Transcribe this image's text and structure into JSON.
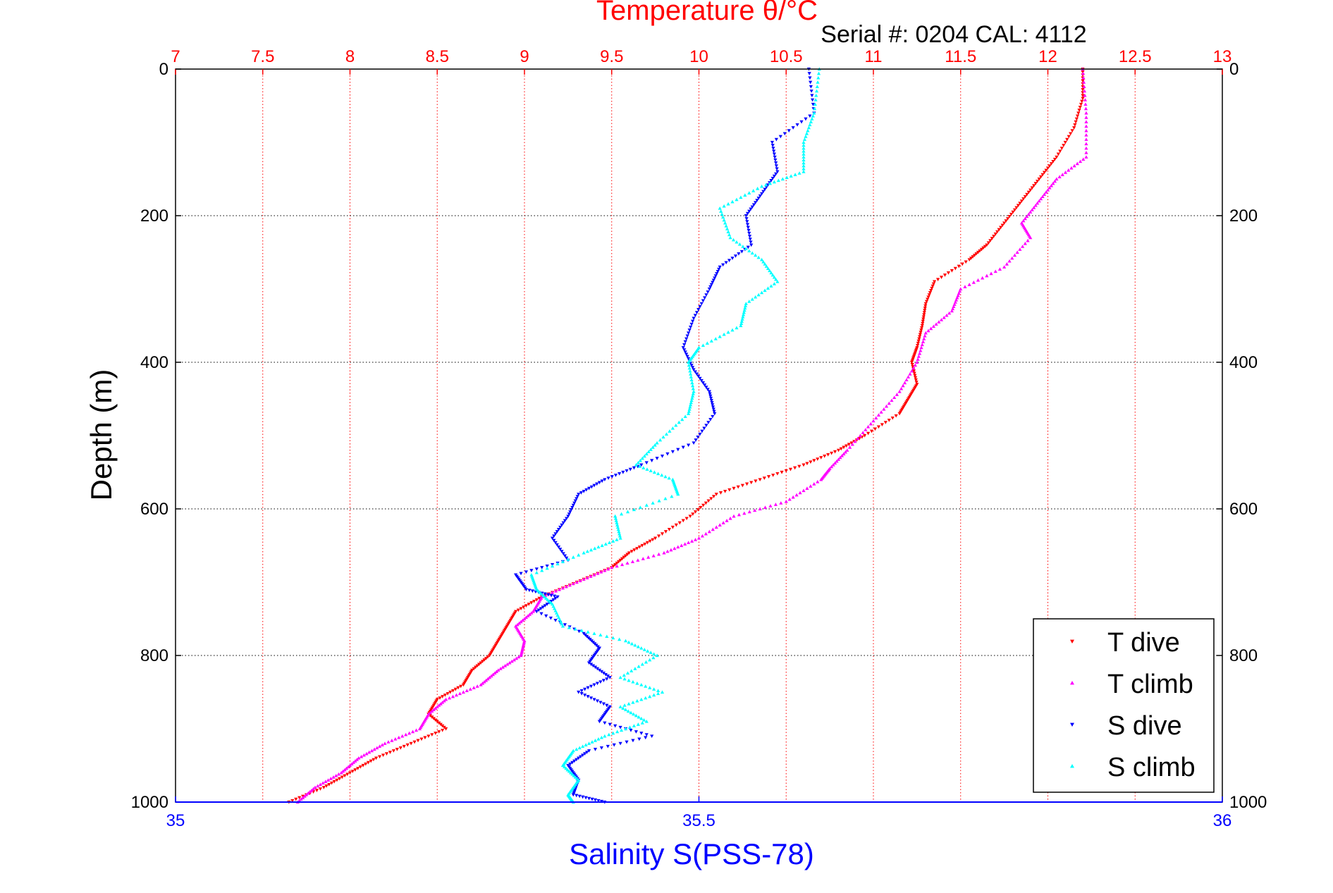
{
  "chart_data": {
    "type": "scatter",
    "title": "Temperature θ/°C",
    "subtitle": "Serial #: 0204  CAL: 4112",
    "ylabel": "Depth (m)",
    "x_top_label": "Temperature θ/°C",
    "x_bottom_label": "Salinity S(PSS-78)",
    "y_range": [
      0,
      1000
    ],
    "y_reversed": true,
    "y_ticks": [
      0,
      200,
      400,
      600,
      800,
      1000
    ],
    "y_tick_labels": [
      "0",
      "200",
      "400",
      "600",
      "800",
      "1000"
    ],
    "x_top_range": [
      7,
      13
    ],
    "x_top_ticks": [
      7,
      7.5,
      8,
      8.5,
      9,
      9.5,
      10,
      10.5,
      11,
      11.5,
      12,
      12.5,
      13
    ],
    "x_top_tick_labels": [
      "7",
      "7.5",
      "8",
      "8.5",
      "9",
      "9.5",
      "10",
      "10.5",
      "11",
      "11.5",
      "12",
      "12.5",
      "13"
    ],
    "x_bottom_range": [
      35,
      36
    ],
    "x_bottom_ticks": [
      35,
      35.5,
      36
    ],
    "x_bottom_tick_labels": [
      "35",
      "35.5",
      "36"
    ],
    "grid": true,
    "legend_position": "bottom-right",
    "colors": {
      "temperature_axis": "#ff0000",
      "salinity_axis": "#0000ff",
      "grid": "#000000"
    },
    "series": [
      {
        "name": "T dive",
        "axis": "temperature",
        "color": "#ff0000",
        "marker": "triangle-down",
        "points": [
          [
            12.2,
            0
          ],
          [
            12.2,
            40
          ],
          [
            12.15,
            80
          ],
          [
            12.05,
            120
          ],
          [
            11.95,
            150
          ],
          [
            11.85,
            180
          ],
          [
            11.75,
            210
          ],
          [
            11.65,
            240
          ],
          [
            11.55,
            260
          ],
          [
            11.35,
            290
          ],
          [
            11.3,
            320
          ],
          [
            11.28,
            350
          ],
          [
            11.25,
            380
          ],
          [
            11.22,
            400
          ],
          [
            11.25,
            430
          ],
          [
            11.2,
            450
          ],
          [
            11.15,
            470
          ],
          [
            10.95,
            500
          ],
          [
            10.8,
            520
          ],
          [
            10.6,
            540
          ],
          [
            10.35,
            560
          ],
          [
            10.1,
            580
          ],
          [
            9.95,
            610
          ],
          [
            9.75,
            640
          ],
          [
            9.6,
            660
          ],
          [
            9.5,
            680
          ],
          [
            9.3,
            700
          ],
          [
            9.1,
            720
          ],
          [
            8.95,
            740
          ],
          [
            8.9,
            760
          ],
          [
            8.85,
            780
          ],
          [
            8.8,
            800
          ],
          [
            8.7,
            820
          ],
          [
            8.65,
            840
          ],
          [
            8.5,
            860
          ],
          [
            8.45,
            880
          ],
          [
            8.55,
            900
          ],
          [
            8.35,
            920
          ],
          [
            8.15,
            940
          ],
          [
            8.0,
            960
          ],
          [
            7.85,
            980
          ],
          [
            7.65,
            1000
          ]
        ]
      },
      {
        "name": "T climb",
        "axis": "temperature",
        "color": "#ff00ff",
        "marker": "triangle-up",
        "points": [
          [
            12.2,
            0
          ],
          [
            12.22,
            60
          ],
          [
            12.22,
            120
          ],
          [
            12.05,
            150
          ],
          [
            11.95,
            180
          ],
          [
            11.85,
            210
          ],
          [
            11.9,
            230
          ],
          [
            11.75,
            270
          ],
          [
            11.5,
            300
          ],
          [
            11.45,
            330
          ],
          [
            11.3,
            360
          ],
          [
            11.25,
            400
          ],
          [
            11.15,
            440
          ],
          [
            11.0,
            480
          ],
          [
            10.85,
            520
          ],
          [
            10.75,
            545
          ],
          [
            10.7,
            560
          ],
          [
            10.5,
            590
          ],
          [
            10.2,
            610
          ],
          [
            10.0,
            640
          ],
          [
            9.8,
            660
          ],
          [
            9.5,
            680
          ],
          [
            9.3,
            700
          ],
          [
            9.1,
            720
          ],
          [
            9.05,
            740
          ],
          [
            8.95,
            760
          ],
          [
            9.0,
            780
          ],
          [
            8.98,
            800
          ],
          [
            8.85,
            820
          ],
          [
            8.75,
            840
          ],
          [
            8.55,
            860
          ],
          [
            8.45,
            880
          ],
          [
            8.4,
            900
          ],
          [
            8.2,
            920
          ],
          [
            8.05,
            940
          ],
          [
            7.95,
            960
          ],
          [
            7.8,
            980
          ],
          [
            7.7,
            1000
          ]
        ]
      },
      {
        "name": "S dive",
        "axis": "salinity",
        "color": "#0000ff",
        "marker": "triangle-down",
        "points": [
          [
            35.605,
            0
          ],
          [
            35.61,
            60
          ],
          [
            35.57,
            100
          ],
          [
            35.575,
            140
          ],
          [
            35.56,
            170
          ],
          [
            35.545,
            200
          ],
          [
            35.55,
            240
          ],
          [
            35.52,
            270
          ],
          [
            35.51,
            300
          ],
          [
            35.495,
            340
          ],
          [
            35.485,
            380
          ],
          [
            35.495,
            410
          ],
          [
            35.51,
            440
          ],
          [
            35.515,
            470
          ],
          [
            35.495,
            510
          ],
          [
            35.445,
            540
          ],
          [
            35.41,
            560
          ],
          [
            35.385,
            580
          ],
          [
            35.375,
            610
          ],
          [
            35.36,
            640
          ],
          [
            35.375,
            670
          ],
          [
            35.325,
            690
          ],
          [
            35.335,
            710
          ],
          [
            35.365,
            720
          ],
          [
            35.345,
            740
          ],
          [
            35.39,
            770
          ],
          [
            35.405,
            790
          ],
          [
            35.395,
            810
          ],
          [
            35.415,
            830
          ],
          [
            35.385,
            850
          ],
          [
            35.415,
            870
          ],
          [
            35.405,
            890
          ],
          [
            35.455,
            910
          ],
          [
            35.395,
            930
          ],
          [
            35.375,
            950
          ],
          [
            35.385,
            970
          ],
          [
            35.38,
            990
          ],
          [
            35.41,
            1000
          ]
        ]
      },
      {
        "name": "S climb",
        "axis": "salinity",
        "color": "#00ffff",
        "marker": "triangle-up",
        "points": [
          [
            35.615,
            0
          ],
          [
            35.61,
            60
          ],
          [
            35.6,
            100
          ],
          [
            35.6,
            140
          ],
          [
            35.56,
            160
          ],
          [
            35.52,
            190
          ],
          [
            35.53,
            230
          ],
          [
            35.56,
            260
          ],
          [
            35.575,
            290
          ],
          [
            35.545,
            320
          ],
          [
            35.54,
            350
          ],
          [
            35.5,
            380
          ],
          [
            35.49,
            400
          ],
          [
            35.495,
            440
          ],
          [
            35.49,
            470
          ],
          [
            35.46,
            510
          ],
          [
            35.44,
            540
          ],
          [
            35.475,
            560
          ],
          [
            35.48,
            580
          ],
          [
            35.42,
            610
          ],
          [
            35.425,
            640
          ],
          [
            35.39,
            660
          ],
          [
            35.34,
            690
          ],
          [
            35.345,
            710
          ],
          [
            35.36,
            730
          ],
          [
            35.37,
            760
          ],
          [
            35.43,
            780
          ],
          [
            35.46,
            800
          ],
          [
            35.425,
            830
          ],
          [
            35.465,
            850
          ],
          [
            35.425,
            870
          ],
          [
            35.45,
            890
          ],
          [
            35.41,
            910
          ],
          [
            35.38,
            930
          ],
          [
            35.37,
            950
          ],
          [
            35.385,
            970
          ],
          [
            35.375,
            990
          ],
          [
            35.38,
            1000
          ]
        ]
      }
    ]
  }
}
